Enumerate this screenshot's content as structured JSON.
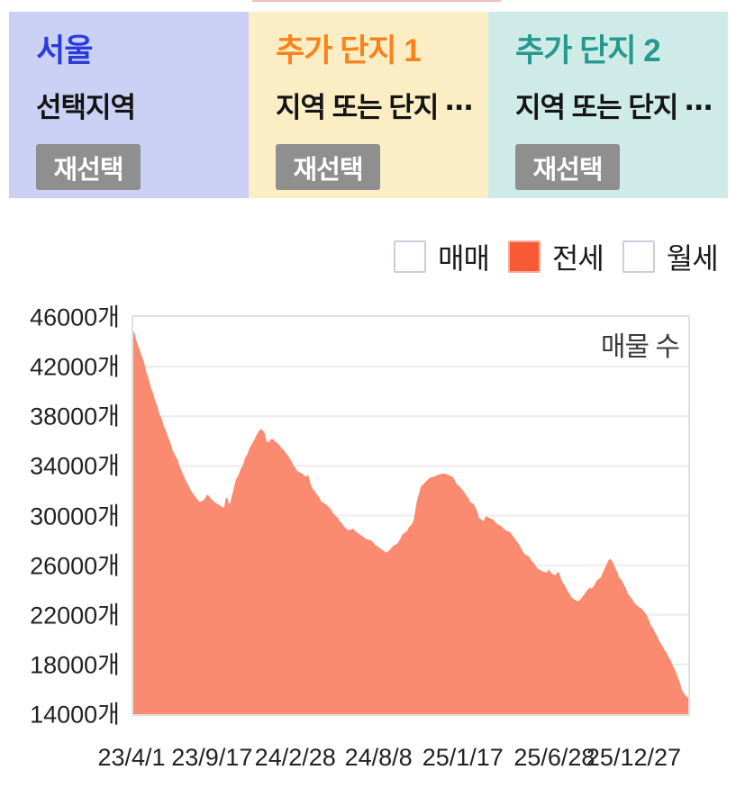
{
  "top_tab_indicator": {
    "color": "#f2bdbd"
  },
  "panels": [
    {
      "title": "서울",
      "subtitle": "선택지역",
      "button_label": "재선택",
      "bg": "#cbd1f4",
      "title_color": "#2b3be0"
    },
    {
      "title": "추가 단지 1",
      "subtitle": "지역 또는 단지 ⋯",
      "button_label": "재선택",
      "bg": "#fbeec5",
      "title_color": "#f8831d"
    },
    {
      "title": "추가 단지 2",
      "subtitle": "지역 또는 단지 ⋯",
      "button_label": "재선택",
      "bg": "#ceebe7",
      "title_color": "#26998f"
    }
  ],
  "button_style": {
    "bg": "#8f8f8f",
    "text_color": "#ffffff"
  },
  "legend": {
    "items": [
      {
        "label": "매매",
        "checked": false
      },
      {
        "label": "전세",
        "checked": true,
        "fill": "#f85a36",
        "border": "#fbab97"
      },
      {
        "label": "월세",
        "checked": false
      }
    ]
  },
  "chart_data": {
    "type": "area",
    "title": "매물 수",
    "series_name": "전세",
    "unit": "개",
    "grid": true,
    "legend_position": "top-right",
    "area_color": "#fa8b70",
    "grid_color": "#ececec",
    "ylim": [
      14000,
      46000
    ],
    "y_tick_step": 4000,
    "y_ticks": [
      "46000개",
      "42000개",
      "38000개",
      "34000개",
      "30000개",
      "26000개",
      "22000개",
      "18000개",
      "14000개"
    ],
    "x_ticks": [
      {
        "label": "23/4/1",
        "pos": 0.0
      },
      {
        "label": "23/9/17",
        "pos": 0.145
      },
      {
        "label": "24/2/28",
        "pos": 0.295
      },
      {
        "label": "24/8/8",
        "pos": 0.445
      },
      {
        "label": "25/1/17",
        "pos": 0.597
      },
      {
        "label": "25/6/28",
        "pos": 0.762
      },
      {
        "label": "25/12/27",
        "pos": 0.905
      }
    ],
    "points": [
      [
        0.0,
        44900
      ],
      [
        0.003,
        44600
      ],
      [
        0.006,
        44000
      ],
      [
        0.011,
        43400
      ],
      [
        0.015,
        42900
      ],
      [
        0.019,
        42400
      ],
      [
        0.023,
        41600
      ],
      [
        0.028,
        41000
      ],
      [
        0.031,
        40400
      ],
      [
        0.036,
        39800
      ],
      [
        0.039,
        39300
      ],
      [
        0.044,
        38700
      ],
      [
        0.047,
        38200
      ],
      [
        0.052,
        37700
      ],
      [
        0.055,
        37200
      ],
      [
        0.06,
        36700
      ],
      [
        0.063,
        36300
      ],
      [
        0.068,
        35700
      ],
      [
        0.071,
        35200
      ],
      [
        0.076,
        34800
      ],
      [
        0.08,
        34500
      ],
      [
        0.084,
        33900
      ],
      [
        0.088,
        33500
      ],
      [
        0.093,
        33000
      ],
      [
        0.096,
        32700
      ],
      [
        0.101,
        32300
      ],
      [
        0.104,
        32000
      ],
      [
        0.109,
        31700
      ],
      [
        0.112,
        31500
      ],
      [
        0.117,
        31200
      ],
      [
        0.12,
        31100
      ],
      [
        0.125,
        31200
      ],
      [
        0.128,
        31300
      ],
      [
        0.133,
        31700
      ],
      [
        0.136,
        31600
      ],
      [
        0.141,
        31300
      ],
      [
        0.144,
        31200
      ],
      [
        0.149,
        31000
      ],
      [
        0.153,
        30900
      ],
      [
        0.157,
        30800
      ],
      [
        0.161,
        30650
      ],
      [
        0.164,
        30700
      ],
      [
        0.166,
        31300
      ],
      [
        0.169,
        31500
      ],
      [
        0.172,
        31000
      ],
      [
        0.174,
        30900
      ],
      [
        0.177,
        31500
      ],
      [
        0.18,
        32000
      ],
      [
        0.182,
        32400
      ],
      [
        0.185,
        32900
      ],
      [
        0.19,
        33300
      ],
      [
        0.193,
        33700
      ],
      [
        0.198,
        34100
      ],
      [
        0.201,
        34600
      ],
      [
        0.206,
        35000
      ],
      [
        0.209,
        35400
      ],
      [
        0.214,
        35800
      ],
      [
        0.218,
        36100
      ],
      [
        0.222,
        36500
      ],
      [
        0.226,
        36800
      ],
      [
        0.231,
        37000
      ],
      [
        0.234,
        36800
      ],
      [
        0.237,
        36600
      ],
      [
        0.24,
        36000
      ],
      [
        0.244,
        35900
      ],
      [
        0.247,
        36100
      ],
      [
        0.25,
        36200
      ],
      [
        0.253,
        36100
      ],
      [
        0.258,
        35900
      ],
      [
        0.263,
        35700
      ],
      [
        0.266,
        35500
      ],
      [
        0.271,
        35300
      ],
      [
        0.274,
        35100
      ],
      [
        0.279,
        34800
      ],
      [
        0.282,
        34600
      ],
      [
        0.287,
        34200
      ],
      [
        0.291,
        33900
      ],
      [
        0.295,
        33600
      ],
      [
        0.299,
        33500
      ],
      [
        0.304,
        33400
      ],
      [
        0.307,
        33250
      ],
      [
        0.312,
        33150
      ],
      [
        0.315,
        33300
      ],
      [
        0.318,
        32800
      ],
      [
        0.32,
        32500
      ],
      [
        0.323,
        32200
      ],
      [
        0.328,
        31900
      ],
      [
        0.331,
        31700
      ],
      [
        0.336,
        31400
      ],
      [
        0.339,
        31100
      ],
      [
        0.344,
        31000
      ],
      [
        0.347,
        30900
      ],
      [
        0.352,
        30700
      ],
      [
        0.356,
        30500
      ],
      [
        0.36,
        30200
      ],
      [
        0.364,
        30000
      ],
      [
        0.369,
        29800
      ],
      [
        0.372,
        29550
      ],
      [
        0.377,
        29300
      ],
      [
        0.38,
        29100
      ],
      [
        0.385,
        28900
      ],
      [
        0.388,
        28800
      ],
      [
        0.393,
        28900
      ],
      [
        0.396,
        28950
      ],
      [
        0.401,
        28700
      ],
      [
        0.404,
        28600
      ],
      [
        0.409,
        28450
      ],
      [
        0.412,
        28350
      ],
      [
        0.417,
        28200
      ],
      [
        0.42,
        28100
      ],
      [
        0.425,
        28050
      ],
      [
        0.429,
        28000
      ],
      [
        0.433,
        27800
      ],
      [
        0.437,
        27600
      ],
      [
        0.442,
        27450
      ],
      [
        0.445,
        27350
      ],
      [
        0.45,
        27200
      ],
      [
        0.453,
        27100
      ],
      [
        0.456,
        27000
      ],
      [
        0.461,
        27200
      ],
      [
        0.466,
        27450
      ],
      [
        0.469,
        27600
      ],
      [
        0.474,
        27700
      ],
      [
        0.477,
        27800
      ],
      [
        0.482,
        28200
      ],
      [
        0.485,
        28500
      ],
      [
        0.49,
        28650
      ],
      [
        0.494,
        28800
      ],
      [
        0.497,
        29100
      ],
      [
        0.502,
        29300
      ],
      [
        0.505,
        29600
      ],
      [
        0.508,
        30400
      ],
      [
        0.511,
        31200
      ],
      [
        0.515,
        31800
      ],
      [
        0.518,
        32350
      ],
      [
        0.523,
        32550
      ],
      [
        0.526,
        32700
      ],
      [
        0.531,
        32900
      ],
      [
        0.534,
        33050
      ],
      [
        0.539,
        33100
      ],
      [
        0.542,
        33150
      ],
      [
        0.547,
        33250
      ],
      [
        0.55,
        33300
      ],
      [
        0.555,
        33350
      ],
      [
        0.558,
        33400
      ],
      [
        0.563,
        33350
      ],
      [
        0.567,
        33300
      ],
      [
        0.571,
        33200
      ],
      [
        0.575,
        33150
      ],
      [
        0.58,
        32800
      ],
      [
        0.583,
        32500
      ],
      [
        0.588,
        32350
      ],
      [
        0.591,
        32200
      ],
      [
        0.596,
        31900
      ],
      [
        0.599,
        31700
      ],
      [
        0.604,
        31400
      ],
      [
        0.607,
        31100
      ],
      [
        0.612,
        30950
      ],
      [
        0.615,
        30850
      ],
      [
        0.62,
        30300
      ],
      [
        0.623,
        29800
      ],
      [
        0.628,
        29650
      ],
      [
        0.631,
        29550
      ],
      [
        0.634,
        29850
      ],
      [
        0.636,
        29950
      ],
      [
        0.64,
        29850
      ],
      [
        0.644,
        29750
      ],
      [
        0.648,
        29700
      ],
      [
        0.652,
        29500
      ],
      [
        0.656,
        29300
      ],
      [
        0.661,
        29200
      ],
      [
        0.664,
        29100
      ],
      [
        0.669,
        28900
      ],
      [
        0.672,
        28800
      ],
      [
        0.677,
        28700
      ],
      [
        0.68,
        28600
      ],
      [
        0.685,
        28300
      ],
      [
        0.688,
        28100
      ],
      [
        0.693,
        27800
      ],
      [
        0.696,
        27600
      ],
      [
        0.701,
        27200
      ],
      [
        0.705,
        26900
      ],
      [
        0.709,
        26800
      ],
      [
        0.713,
        26700
      ],
      [
        0.717,
        26400
      ],
      [
        0.721,
        26200
      ],
      [
        0.726,
        25900
      ],
      [
        0.729,
        25700
      ],
      [
        0.734,
        25600
      ],
      [
        0.737,
        25500
      ],
      [
        0.742,
        25450
      ],
      [
        0.745,
        25400
      ],
      [
        0.748,
        25650
      ],
      [
        0.751,
        25500
      ],
      [
        0.755,
        25300
      ],
      [
        0.758,
        25250
      ],
      [
        0.761,
        25200
      ],
      [
        0.765,
        25500
      ],
      [
        0.768,
        25300
      ],
      [
        0.771,
        24900
      ],
      [
        0.774,
        24600
      ],
      [
        0.778,
        24350
      ],
      [
        0.782,
        24000
      ],
      [
        0.786,
        23700
      ],
      [
        0.79,
        23400
      ],
      [
        0.794,
        23250
      ],
      [
        0.799,
        23150
      ],
      [
        0.802,
        23100
      ],
      [
        0.807,
        23300
      ],
      [
        0.81,
        23500
      ],
      [
        0.815,
        23800
      ],
      [
        0.818,
        24000
      ],
      [
        0.823,
        24200
      ],
      [
        0.826,
        24100
      ],
      [
        0.831,
        24400
      ],
      [
        0.834,
        24700
      ],
      [
        0.839,
        24900
      ],
      [
        0.843,
        25050
      ],
      [
        0.847,
        25500
      ],
      [
        0.851,
        25900
      ],
      [
        0.854,
        26200
      ],
      [
        0.857,
        26450
      ],
      [
        0.86,
        26500
      ],
      [
        0.864,
        26250
      ],
      [
        0.867,
        25900
      ],
      [
        0.872,
        25450
      ],
      [
        0.875,
        25050
      ],
      [
        0.88,
        24800
      ],
      [
        0.883,
        24550
      ],
      [
        0.888,
        24100
      ],
      [
        0.891,
        23700
      ],
      [
        0.896,
        23450
      ],
      [
        0.899,
        23250
      ],
      [
        0.904,
        22900
      ],
      [
        0.908,
        22750
      ],
      [
        0.912,
        22600
      ],
      [
        0.916,
        22500
      ],
      [
        0.92,
        22300
      ],
      [
        0.924,
        22050
      ],
      [
        0.929,
        21600
      ],
      [
        0.932,
        21200
      ],
      [
        0.937,
        20900
      ],
      [
        0.94,
        20600
      ],
      [
        0.945,
        20200
      ],
      [
        0.948,
        19850
      ],
      [
        0.953,
        19550
      ],
      [
        0.956,
        19250
      ],
      [
        0.961,
        18950
      ],
      [
        0.964,
        18650
      ],
      [
        0.969,
        18300
      ],
      [
        0.972,
        17900
      ],
      [
        0.977,
        17500
      ],
      [
        0.981,
        17000
      ],
      [
        0.985,
        16500
      ],
      [
        0.988,
        16000
      ],
      [
        0.992,
        15700
      ],
      [
        0.995,
        15500
      ],
      [
        1.0,
        15300
      ]
    ]
  }
}
